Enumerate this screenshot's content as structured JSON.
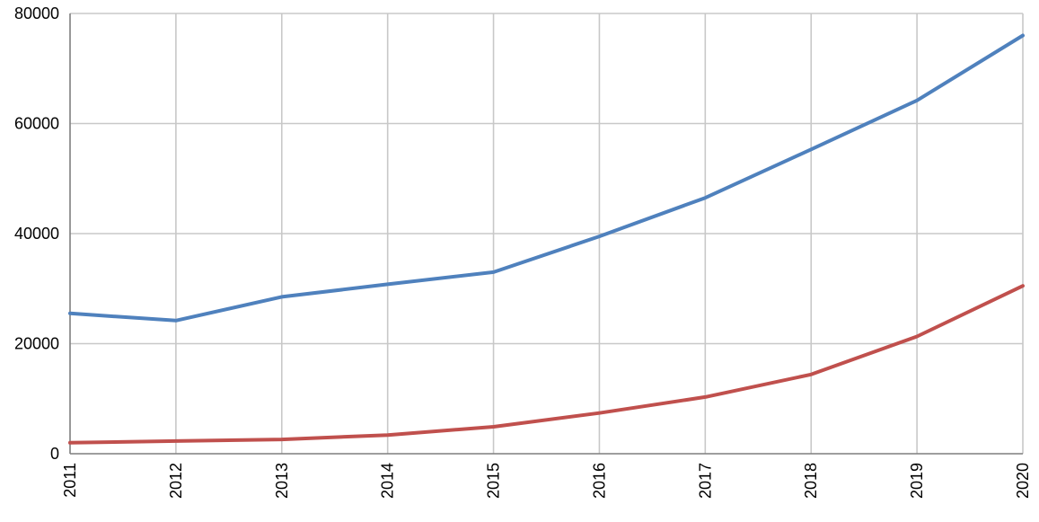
{
  "chart_data": {
    "type": "line",
    "title": "",
    "xlabel": "",
    "ylabel": "",
    "x": [
      "2011",
      "2012",
      "2013",
      "2014",
      "2015",
      "2016",
      "2017",
      "2018",
      "2019",
      "2020"
    ],
    "ylim": [
      0,
      80000
    ],
    "y_ticks": [
      "0",
      "20000",
      "40000",
      "60000",
      "80000"
    ],
    "grid": true,
    "legend": "none",
    "series": [
      {
        "color": "#4f81bd",
        "values": [
          25500,
          24200,
          28500,
          30800,
          33000,
          39500,
          46500,
          55300,
          64200,
          76000
        ]
      },
      {
        "color": "#c0504d",
        "values": [
          2000,
          2300,
          2600,
          3400,
          4900,
          7400,
          10300,
          14400,
          21300,
          30500
        ]
      }
    ]
  }
}
